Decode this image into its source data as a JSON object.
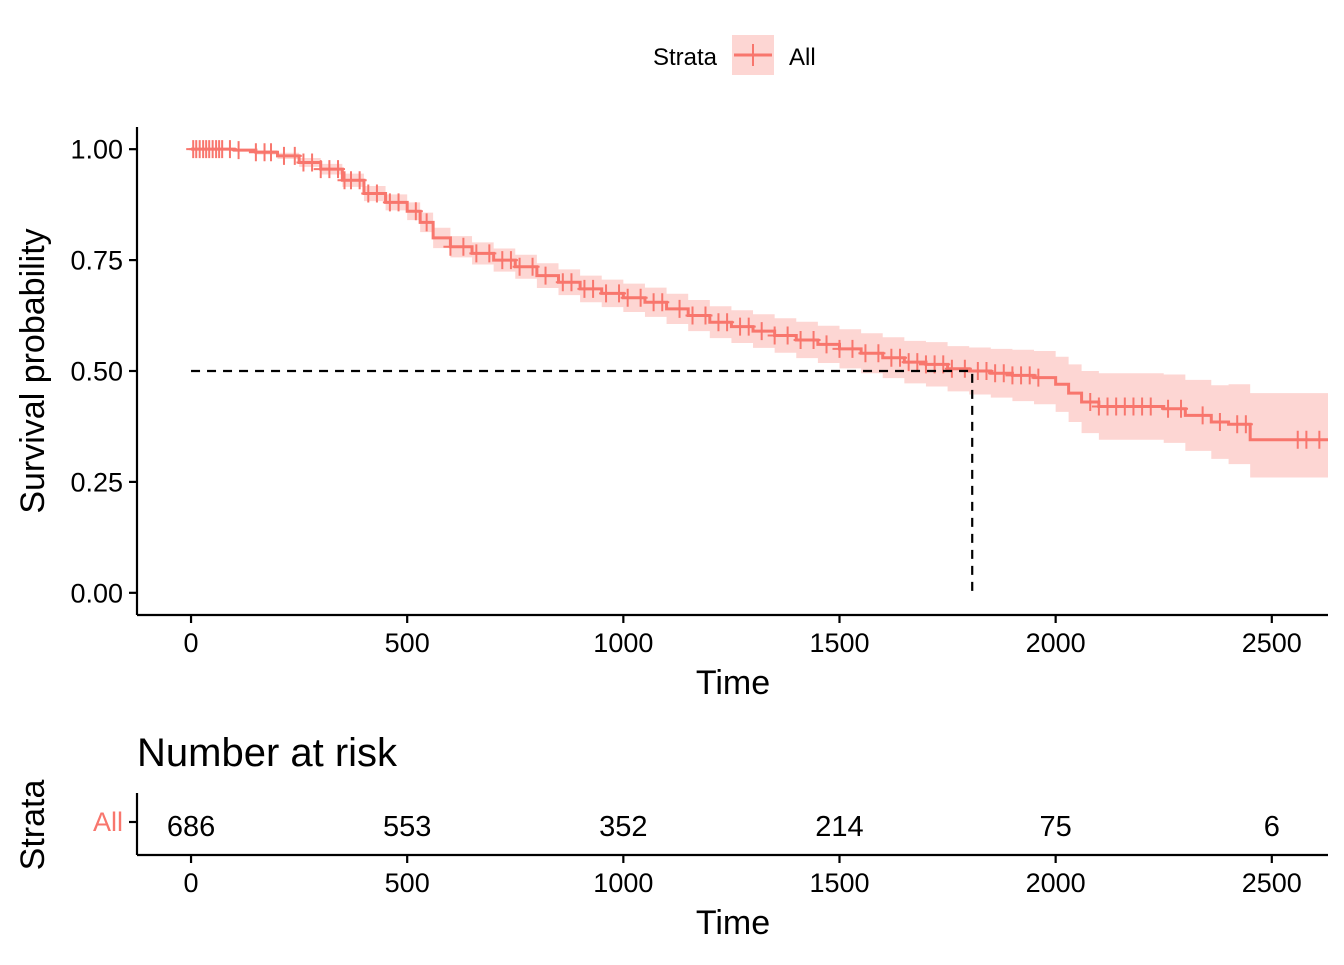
{
  "legend": {
    "title": "Strata",
    "entries": [
      "All"
    ]
  },
  "colors": {
    "line": "#F8766D",
    "band": "#F8766D",
    "axis": "#000000",
    "median": "#000000"
  },
  "chart_data": {
    "type": "line",
    "subtype": "kaplan-meier",
    "xlabel": "Time",
    "ylabel": "Survival probability",
    "xlim": [
      -125,
      2630
    ],
    "ylim": [
      -0.05,
      1.05
    ],
    "x_ticks": [
      0,
      500,
      1000,
      1500,
      2000,
      2500
    ],
    "x_tick_labels": [
      "0",
      "500",
      "1000",
      "1500",
      "2000",
      "2500"
    ],
    "y_ticks": [
      0,
      0.25,
      0.5,
      0.75,
      1.0
    ],
    "y_tick_labels": [
      "0.00",
      "0.25",
      "0.50",
      "0.75",
      "1.00"
    ],
    "grid": false,
    "legend_position": "top",
    "median_survival": {
      "x": 1807,
      "y": 0.5
    },
    "series": [
      {
        "name": "All",
        "x": [
          0,
          100,
          150,
          200,
          250,
          300,
          350,
          400,
          450,
          500,
          530,
          560,
          600,
          650,
          700,
          750,
          800,
          850,
          900,
          950,
          1000,
          1050,
          1100,
          1150,
          1200,
          1250,
          1300,
          1350,
          1400,
          1450,
          1500,
          1550,
          1600,
          1650,
          1700,
          1750,
          1800,
          1850,
          1900,
          1950,
          2000,
          2030,
          2060,
          2100,
          2150,
          2200,
          2250,
          2300,
          2360,
          2400,
          2450,
          2500,
          2550,
          2600,
          2630
        ],
        "y": [
          1.0,
          0.998,
          0.993,
          0.985,
          0.97,
          0.955,
          0.93,
          0.9,
          0.88,
          0.86,
          0.835,
          0.8,
          0.78,
          0.765,
          0.75,
          0.735,
          0.715,
          0.7,
          0.685,
          0.675,
          0.665,
          0.655,
          0.64,
          0.625,
          0.61,
          0.6,
          0.59,
          0.58,
          0.57,
          0.56,
          0.55,
          0.54,
          0.53,
          0.52,
          0.515,
          0.505,
          0.5,
          0.495,
          0.49,
          0.485,
          0.47,
          0.45,
          0.43,
          0.42,
          0.42,
          0.42,
          0.415,
          0.4,
          0.385,
          0.38,
          0.345,
          0.345,
          0.345,
          0.345,
          0.345
        ],
        "lower": [
          1.0,
          0.995,
          0.988,
          0.978,
          0.96,
          0.943,
          0.915,
          0.883,
          0.862,
          0.84,
          0.813,
          0.777,
          0.756,
          0.74,
          0.724,
          0.708,
          0.687,
          0.671,
          0.655,
          0.644,
          0.633,
          0.622,
          0.606,
          0.59,
          0.574,
          0.563,
          0.552,
          0.541,
          0.529,
          0.518,
          0.506,
          0.495,
          0.484,
          0.472,
          0.465,
          0.454,
          0.447,
          0.44,
          0.432,
          0.425,
          0.408,
          0.385,
          0.36,
          0.345,
          0.345,
          0.345,
          0.338,
          0.32,
          0.302,
          0.29,
          0.26,
          0.26,
          0.26,
          0.26,
          0.26
        ],
        "upper": [
          1.0,
          1.0,
          0.998,
          0.992,
          0.98,
          0.967,
          0.945,
          0.917,
          0.898,
          0.88,
          0.857,
          0.823,
          0.804,
          0.79,
          0.776,
          0.762,
          0.743,
          0.729,
          0.715,
          0.706,
          0.697,
          0.688,
          0.674,
          0.66,
          0.646,
          0.637,
          0.628,
          0.619,
          0.611,
          0.602,
          0.594,
          0.585,
          0.576,
          0.568,
          0.565,
          0.556,
          0.553,
          0.55,
          0.548,
          0.545,
          0.532,
          0.515,
          0.5,
          0.495,
          0.495,
          0.495,
          0.492,
          0.48,
          0.468,
          0.47,
          0.45,
          0.45,
          0.45,
          0.45,
          0.45
        ],
        "censor_times": [
          5,
          12,
          20,
          28,
          35,
          42,
          50,
          58,
          65,
          72,
          90,
          110,
          150,
          170,
          185,
          215,
          240,
          260,
          280,
          300,
          320,
          340,
          355,
          370,
          390,
          410,
          430,
          460,
          480,
          520,
          545,
          600,
          630,
          660,
          690,
          720,
          740,
          760,
          790,
          820,
          860,
          880,
          910,
          930,
          960,
          990,
          1010,
          1040,
          1070,
          1090,
          1130,
          1160,
          1190,
          1220,
          1240,
          1270,
          1290,
          1320,
          1350,
          1380,
          1410,
          1440,
          1470,
          1500,
          1530,
          1560,
          1590,
          1620,
          1640,
          1660,
          1680,
          1700,
          1720,
          1740,
          1760,
          1790,
          1820,
          1840,
          1860,
          1880,
          1900,
          1920,
          1940,
          1960,
          2080,
          2100,
          2120,
          2140,
          2160,
          2180,
          2200,
          2220,
          2260,
          2290,
          2340,
          2380,
          2420,
          2440,
          2560,
          2580,
          2610
        ]
      }
    ],
    "risk_table": {
      "title": "Number at risk",
      "ylabel": "Strata",
      "xlabel": "Time",
      "strata": [
        "All"
      ],
      "times": [
        0,
        500,
        1000,
        1500,
        2000,
        2500
      ],
      "counts": [
        [
          "686",
          "553",
          "352",
          "214",
          "75",
          "6"
        ]
      ]
    }
  }
}
